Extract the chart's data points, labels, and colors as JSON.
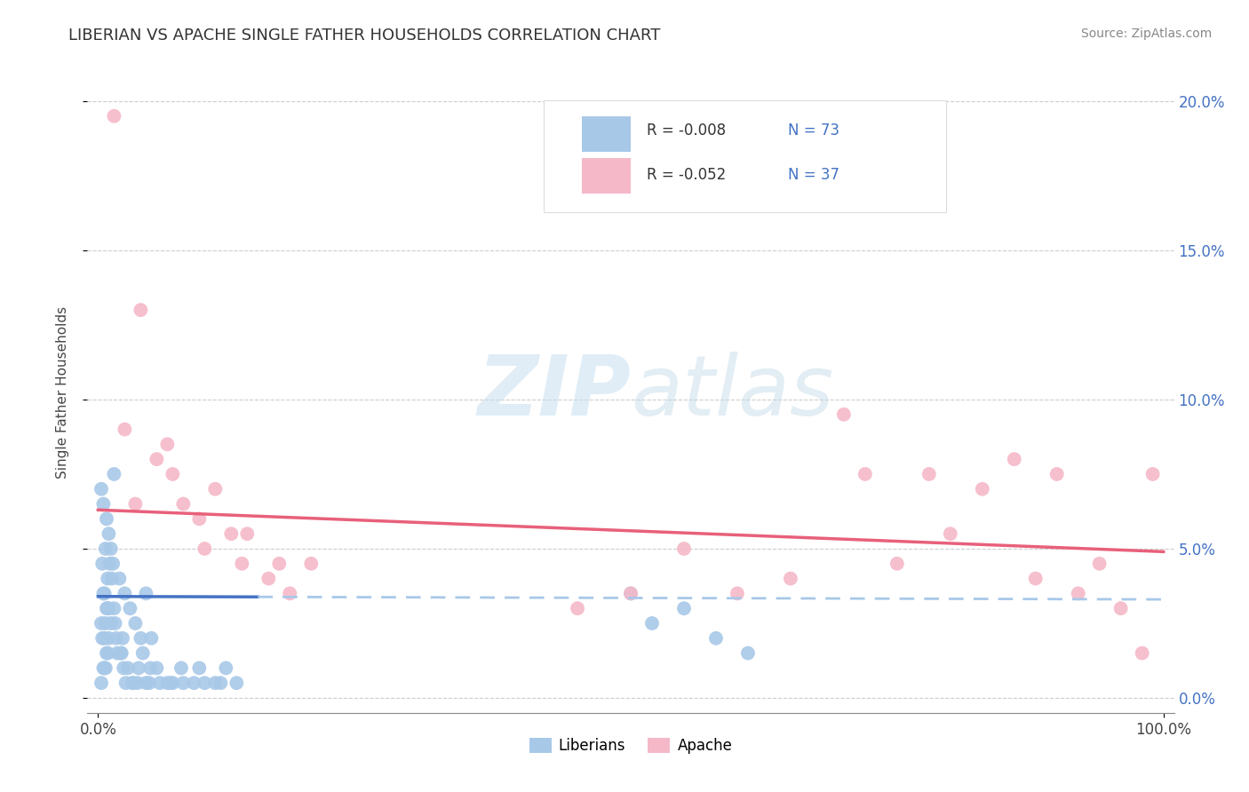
{
  "title": "LIBERIAN VS APACHE SINGLE FATHER HOUSEHOLDS CORRELATION CHART",
  "source": "Source: ZipAtlas.com",
  "ylabel": "Single Father Households",
  "xlim": [
    0,
    100
  ],
  "ylim": [
    0,
    21
  ],
  "yticks": [
    0,
    5,
    10,
    15,
    20
  ],
  "ytick_labels": [
    "0.0%",
    "5.0%",
    "10.0%",
    "15.0%",
    "20.0%"
  ],
  "legend_text_liberian": "R = -0.008   N = 73",
  "legend_text_apache": "R = -0.052   N = 37",
  "liberian_color": "#a8c8e8",
  "apache_color": "#f5b8c8",
  "liberian_line_color": "#4472c4",
  "apache_line_color": "#e8607a",
  "liberian_line_style": "solid",
  "apache_line_style": "solid",
  "watermark_zip": "ZIP",
  "watermark_atlas": "atlas",
  "title_fontsize": 13,
  "source_fontsize": 10,
  "legend_fontsize": 12,
  "axis_label_color": "#3333aa",
  "legend_r_color": "#333333",
  "legend_n_color": "#4472c4",
  "lib_line_x0": 0,
  "lib_line_x1": 100,
  "lib_line_y0": 3.4,
  "lib_line_y1": 3.3,
  "apa_line_x0": 0,
  "apa_line_x1": 100,
  "apa_line_y0": 6.3,
  "apa_line_y1": 4.9,
  "apache_scatter_x": [
    1.5,
    4.0,
    2.5,
    6.5,
    8.0,
    9.5,
    11.0,
    12.5,
    14.0,
    16.0,
    18.0,
    20.0,
    5.5,
    7.0,
    3.5,
    13.5,
    10.0,
    17.0,
    70.0,
    72.0,
    78.0,
    80.0,
    83.0,
    86.0,
    90.0,
    92.0,
    94.0,
    96.0,
    98.0,
    99.0,
    75.0,
    88.0,
    65.0,
    60.0,
    55.0,
    50.0,
    45.0
  ],
  "apache_scatter_y": [
    19.5,
    13.0,
    9.0,
    8.5,
    6.5,
    6.0,
    7.0,
    5.5,
    5.5,
    4.0,
    3.5,
    4.5,
    8.0,
    7.5,
    6.5,
    4.5,
    5.0,
    4.5,
    9.5,
    7.5,
    7.5,
    5.5,
    7.0,
    8.0,
    7.5,
    3.5,
    4.5,
    3.0,
    1.5,
    7.5,
    4.5,
    4.0,
    4.0,
    3.5,
    5.0,
    3.5,
    3.0
  ],
  "liberian_scatter_x_dense": [
    0.3,
    0.5,
    0.8,
    1.0,
    1.2,
    1.5,
    0.4,
    0.7,
    0.9,
    1.1,
    0.6,
    0.8,
    1.3,
    0.5,
    0.9,
    1.4,
    0.3,
    0.6,
    1.0,
    0.7,
    0.4,
    0.8,
    1.2,
    0.5,
    0.9,
    1.5,
    0.6,
    1.0,
    0.3,
    0.7,
    2.0,
    2.5,
    3.0,
    3.5,
    4.0,
    4.5,
    5.0,
    2.2,
    2.8,
    3.3,
    4.2,
    5.5,
    6.5,
    7.0,
    8.0,
    9.5,
    11.0,
    12.0,
    1.7,
    2.1,
    2.6,
    3.8,
    4.8,
    1.8,
    2.4,
    3.2,
    4.5,
    1.6,
    2.3,
    3.7,
    4.9,
    5.8,
    6.8,
    7.8,
    9.0,
    10.0,
    11.5,
    13.0,
    50.0,
    52.0,
    55.0,
    58.0,
    61.0
  ],
  "liberian_scatter_y_dense": [
    7.0,
    6.5,
    6.0,
    5.5,
    5.0,
    7.5,
    4.5,
    5.0,
    4.0,
    4.5,
    3.5,
    3.0,
    4.0,
    3.5,
    3.0,
    4.5,
    2.5,
    2.0,
    3.0,
    2.5,
    2.0,
    1.5,
    2.5,
    1.0,
    1.5,
    3.0,
    1.0,
    2.0,
    0.5,
    1.0,
    4.0,
    3.5,
    3.0,
    2.5,
    2.0,
    3.5,
    2.0,
    1.5,
    1.0,
    0.5,
    1.5,
    1.0,
    0.5,
    0.5,
    0.5,
    1.0,
    0.5,
    1.0,
    2.0,
    1.5,
    0.5,
    1.0,
    0.5,
    1.5,
    1.0,
    0.5,
    0.5,
    2.5,
    2.0,
    0.5,
    1.0,
    0.5,
    0.5,
    1.0,
    0.5,
    0.5,
    0.5,
    0.5,
    3.5,
    2.5,
    3.0,
    2.0,
    1.5
  ]
}
